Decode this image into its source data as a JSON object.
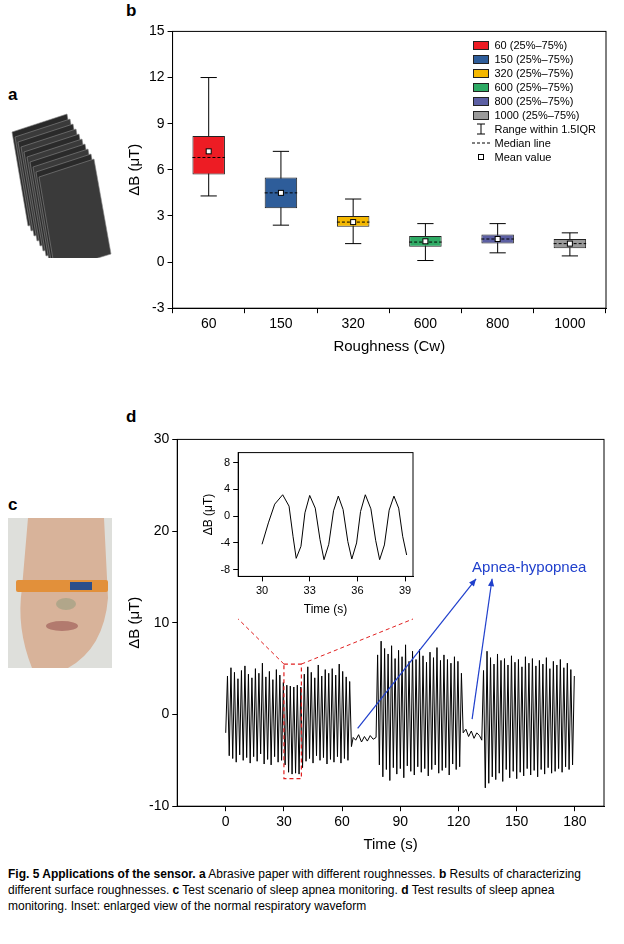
{
  "chart_data": [
    {
      "type": "box",
      "letter": "b",
      "x_label": "Roughness (Cw)",
      "y_label": "ΔB (μT)",
      "categories": [
        "60",
        "150",
        "320",
        "600",
        "800",
        "1000"
      ],
      "series": [
        {
          "name": "60 (25%–75%)",
          "color": "#ed1c24",
          "whisker_low": 4.3,
          "q1": 5.7,
          "median": 6.8,
          "q3": 8.2,
          "whisker_high": 12,
          "mean": 7.2
        },
        {
          "name": "150 (25%–75%)",
          "color": "#2e5d9a",
          "whisker_low": 2.4,
          "q1": 3.5,
          "median": 4.5,
          "q3": 5.5,
          "whisker_high": 7.2,
          "mean": 4.5
        },
        {
          "name": "320 (25%–75%)",
          "color": "#f5b800",
          "whisker_low": 1.2,
          "q1": 2.3,
          "median": 2.6,
          "q3": 3.0,
          "whisker_high": 4.1,
          "mean": 2.6
        },
        {
          "name": "600 (25%–75%)",
          "color": "#2eaa64",
          "whisker_low": 0.1,
          "q1": 1.0,
          "median": 1.3,
          "q3": 1.7,
          "whisker_high": 2.5,
          "mean": 1.35
        },
        {
          "name": "800 (25%–75%)",
          "color": "#5c5fa3",
          "whisker_low": 0.6,
          "q1": 1.2,
          "median": 1.5,
          "q3": 1.8,
          "whisker_high": 2.5,
          "mean": 1.5
        },
        {
          "name": "1000 (25%–75%)",
          "color": "#9a9a9a",
          "whisker_low": 0.4,
          "q1": 0.9,
          "median": 1.2,
          "q3": 1.5,
          "whisker_high": 1.9,
          "mean": 1.2
        }
      ],
      "whisker_label": "Range within 1.5IQR",
      "median_label": "Median line",
      "mean_label": "Mean value",
      "ylim": [
        -3,
        15
      ],
      "yticks": [
        -3,
        0,
        3,
        6,
        9,
        12,
        15
      ],
      "grid": false,
      "legend": "upper right"
    },
    {
      "type": "line",
      "letter": "d",
      "x_label": "Time (s)",
      "y_label": "ΔB (μT)",
      "color": "#000000",
      "x": [
        0,
        0.9,
        1.8,
        2.7,
        3.6,
        4.5,
        5.4,
        6.3,
        7.2,
        8.1,
        9,
        9.9,
        10.8,
        11.7,
        12.6,
        13.5,
        14.4,
        15.3,
        16.2,
        17.1,
        18,
        18.9,
        19.8,
        20.7,
        21.6,
        22.5,
        23.4,
        24.3,
        25.2,
        26.1,
        27,
        27.9,
        28.8,
        29.7,
        30.6,
        31.5,
        32.4,
        33.3,
        34.2,
        35.1,
        36,
        36.9,
        37.8,
        38.7,
        39.6,
        40.5,
        41.4,
        42.3,
        43.2,
        44.1,
        45,
        45.9,
        46.8,
        47.7,
        48.6,
        49.5,
        50.4,
        51.3,
        52.2,
        53.1,
        54,
        54.9,
        55.8,
        56.7,
        57.6,
        58.5,
        59.4,
        60.3,
        61.2,
        62.1,
        63,
        63.9,
        64.8,
        65.7,
        67,
        68.5,
        70,
        71.5,
        73,
        74.5,
        76,
        77.5,
        78.3,
        79.2,
        80.1,
        81,
        81.9,
        82.8,
        83.7,
        84.6,
        85.5,
        86.4,
        87.3,
        88.2,
        89.1,
        90,
        90.9,
        91.8,
        92.7,
        93.6,
        94.5,
        95.4,
        96.3,
        97.2,
        98.1,
        99,
        99.9,
        100.8,
        101.7,
        102.6,
        103.5,
        104.4,
        105.3,
        106.2,
        107.1,
        108,
        108.9,
        109.8,
        110.7,
        111.6,
        112.5,
        113.4,
        114.3,
        115.2,
        116.1,
        117,
        117.9,
        118.8,
        119.7,
        120.6,
        121.5,
        122.4,
        123.8,
        125.2,
        126.6,
        128,
        129.4,
        130.8,
        132,
        132.9,
        133.8,
        134.7,
        135.6,
        136.5,
        137.4,
        138.3,
        139.2,
        140.1,
        141,
        141.9,
        142.8,
        143.7,
        144.6,
        145.5,
        146.4,
        147.3,
        148.2,
        149.1,
        150,
        150.9,
        151.8,
        152.7,
        153.6,
        154.5,
        155.4,
        156.3,
        157.2,
        158.1,
        159,
        159.9,
        160.8,
        161.7,
        162.6,
        163.5,
        164.4,
        165.3,
        166.2,
        167.1,
        168,
        168.9,
        169.8,
        170.7,
        171.6,
        172.5,
        173.4,
        174.3,
        175.2,
        176.1,
        177,
        177.9,
        178.8,
        179.7
      ],
      "values": [
        -2,
        4.2,
        -4.5,
        5.1,
        -4.8,
        4.6,
        -5.2,
        3.9,
        -4.4,
        4.8,
        -5,
        5.3,
        -4.7,
        4.4,
        -5.3,
        4,
        -4.6,
        5,
        -5.1,
        4.5,
        -4.3,
        5.6,
        -5.4,
        4.1,
        -4.9,
        4.7,
        -5.5,
        3.8,
        -4.6,
        4.9,
        -5.2,
        4.3,
        -5,
        3.5,
        -5.5,
        3.2,
        -6.3,
        3.1,
        -6.5,
        3,
        -6.4,
        3.2,
        -6.5,
        3,
        -5.8,
        4.4,
        -5.1,
        5.2,
        -4.8,
        4.6,
        -5.3,
        4,
        -4.5,
        5.4,
        -5,
        4.2,
        -4.7,
        4.9,
        -5.4,
        4.5,
        -4.9,
        5,
        -5.2,
        4.3,
        -4.6,
        5.5,
        -5.3,
        4.7,
        -4.8,
        4.1,
        -5,
        3.6,
        -3.5,
        -2.5,
        -2.8,
        -2.2,
        -3,
        -2.4,
        -2.9,
        -2.3,
        -2.7,
        -2.5,
        6.5,
        -5.5,
        8,
        -6.8,
        7.2,
        -6,
        6.6,
        -7.2,
        7.5,
        -5.8,
        6.1,
        -6.5,
        7,
        -5.9,
        6.3,
        -6.9,
        7.6,
        -5.6,
        5.8,
        -6.2,
        6.9,
        -6.6,
        6,
        -5.7,
        7.1,
        -6.3,
        6.4,
        -5.9,
        5.7,
        -6.7,
        6.8,
        -6,
        6.2,
        -5.5,
        7.3,
        -6.4,
        5.9,
        -6.1,
        6.5,
        -5.8,
        6,
        -6.6,
        5.6,
        -5.4,
        6.3,
        -6,
        5.8,
        -5.7,
        4.5,
        -2,
        -1.6,
        -2.4,
        -1.8,
        -2.6,
        -2,
        -2.3,
        -2.8,
        4.8,
        -8,
        6.9,
        -7.5,
        6.2,
        -6.8,
        5.5,
        -7.1,
        6.6,
        -6.4,
        5.9,
        -7.3,
        6.1,
        -6,
        5.4,
        -6.9,
        6.4,
        -6.2,
        5.7,
        -7,
        6,
        -6.3,
        5.2,
        -6.7,
        6.3,
        -5.9,
        5.6,
        -6.6,
        6.1,
        -6.1,
        5.3,
        -6.8,
        5.9,
        -6,
        5.5,
        -6.5,
        6.2,
        -5.8,
        5,
        -6.4,
        5.8,
        -6.2,
        5.4,
        -5.9,
        6,
        -6.3,
        5.1,
        -5.7,
        5.6,
        -6,
        4.9,
        -5.5,
        4.2
      ],
      "xlim": [
        -25,
        195
      ],
      "xticks": [
        0,
        30,
        60,
        90,
        120,
        150,
        180
      ],
      "ylim": [
        -10,
        30
      ],
      "yticks": [
        -10,
        0,
        10,
        20,
        30
      ],
      "grid": false,
      "annotations": [
        {
          "text": "Apnea-hypopnea",
          "x": 127,
          "y": 16,
          "color": "#1f3fcc",
          "arrows_from": [
            [
              68,
              -1.5
            ],
            [
              127,
              -0.5
            ]
          ]
        }
      ],
      "highlight": {
        "xlim": [
          30,
          39
        ],
        "ylim": [
          -7,
          5.5
        ],
        "color": "#e02020"
      },
      "inset": {
        "type": "line",
        "x_label": "Time (s)",
        "y_label": "ΔB (μT)",
        "color": "#000000",
        "x": [
          30,
          30.4,
          30.8,
          31.3,
          31.7,
          31.95,
          32.15,
          32.45,
          32.7,
          33,
          33.35,
          33.65,
          33.9,
          34.2,
          34.5,
          34.8,
          35.1,
          35.4,
          35.65,
          35.95,
          36.2,
          36.5,
          36.85,
          37.15,
          37.4,
          37.7,
          38,
          38.3,
          38.6,
          38.85,
          39.1
        ],
        "values": [
          -4.2,
          -1,
          1.8,
          3.2,
          1.5,
          -3,
          -6.3,
          -4.5,
          0.5,
          3.1,
          1.2,
          -3.5,
          -6.5,
          -4.2,
          0.8,
          3,
          1,
          -3.8,
          -6.4,
          -4,
          0.7,
          3.2,
          1.1,
          -3.6,
          -6.5,
          -4.3,
          0.9,
          3,
          1.2,
          -3,
          -5.8
        ],
        "xlim": [
          28.5,
          39.5
        ],
        "xticks": [
          30,
          33,
          36,
          39
        ],
        "ylim": [
          -9,
          9.5
        ],
        "yticks": [
          -8,
          -4,
          0,
          4,
          8
        ],
        "grid": false
      }
    }
  ],
  "photos": [
    {
      "letter": "a"
    },
    {
      "letter": "c"
    }
  ],
  "caption": {
    "title": "Fig. 5 Applications of the sensor.",
    "items": [
      {
        "letter": "a",
        "text": "Abrasive paper with different roughnesses."
      },
      {
        "letter": "b",
        "text": "Results of characterizing different surface roughnesses."
      },
      {
        "letter": "c",
        "text": "Test scenario of sleep apnea monitoring."
      },
      {
        "letter": "d",
        "text": "Test results of sleep apnea monitoring. Inset: enlarged view of the normal respiratory waveform"
      }
    ]
  }
}
